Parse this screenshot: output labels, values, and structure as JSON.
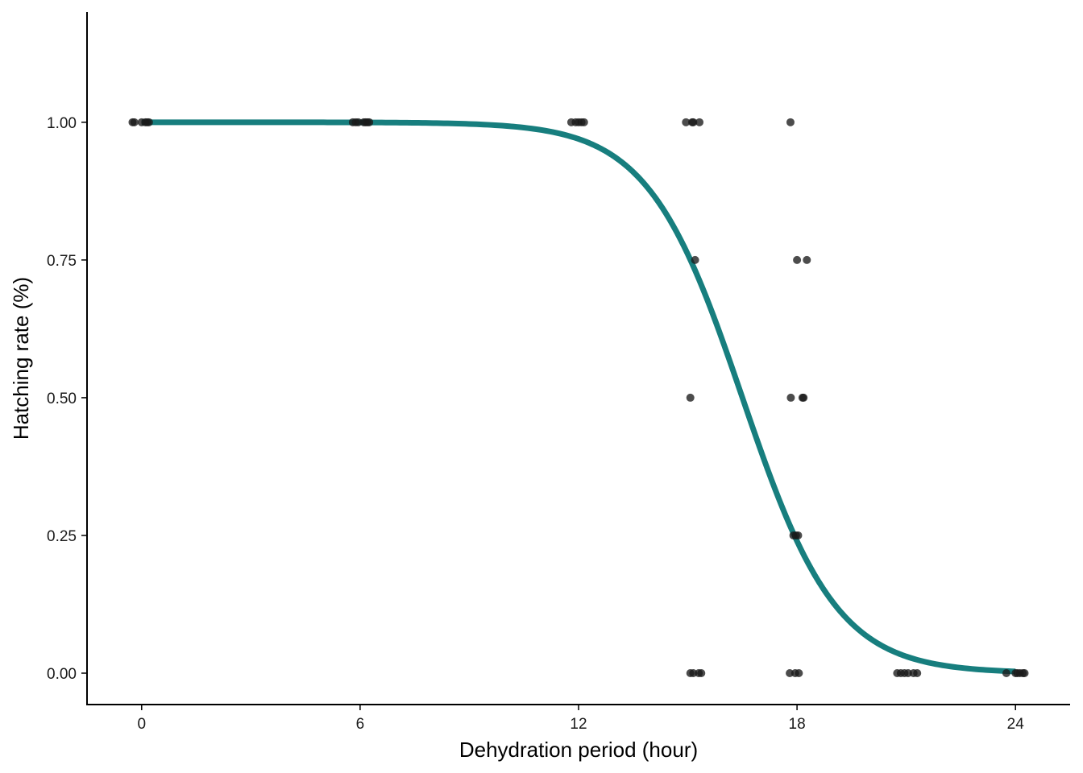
{
  "chart_data": {
    "type": "scatter",
    "title": "",
    "xlabel": "Dehydration period (hour)",
    "ylabel": "Hatching rate (%)",
    "xlim": [
      -1.5,
      25.5
    ],
    "ylim": [
      -0.057,
      1.2
    ],
    "x_ticks": [
      0,
      6,
      12,
      18,
      24
    ],
    "x_tick_labels": [
      "0",
      "6",
      "12",
      "18",
      "24"
    ],
    "y_ticks": [
      0.0,
      0.25,
      0.5,
      0.75,
      1.0
    ],
    "y_tick_labels": [
      "0.00",
      "0.25",
      "0.50",
      "0.75",
      "1.00"
    ],
    "grid": false,
    "legend": "none",
    "colors": {
      "curve": "#177e7e",
      "points": "#1a1a1a",
      "axis": "#000000"
    },
    "points": [
      {
        "x": -0.25,
        "y": 1.0
      },
      {
        "x": -0.2,
        "y": 1.0
      },
      {
        "x": 0.0,
        "y": 1.0
      },
      {
        "x": 0.1,
        "y": 1.0
      },
      {
        "x": 0.15,
        "y": 1.0
      },
      {
        "x": 0.2,
        "y": 1.0
      },
      {
        "x": 5.8,
        "y": 1.0
      },
      {
        "x": 5.88,
        "y": 1.0
      },
      {
        "x": 5.95,
        "y": 1.0
      },
      {
        "x": 6.1,
        "y": 1.0
      },
      {
        "x": 6.15,
        "y": 1.0
      },
      {
        "x": 6.2,
        "y": 1.0
      },
      {
        "x": 6.25,
        "y": 1.0
      },
      {
        "x": 11.8,
        "y": 1.0
      },
      {
        "x": 11.92,
        "y": 1.0
      },
      {
        "x": 12.0,
        "y": 1.0
      },
      {
        "x": 12.08,
        "y": 1.0
      },
      {
        "x": 12.15,
        "y": 1.0
      },
      {
        "x": 14.95,
        "y": 1.0
      },
      {
        "x": 15.12,
        "y": 1.0
      },
      {
        "x": 15.15,
        "y": 1.0
      },
      {
        "x": 15.32,
        "y": 1.0
      },
      {
        "x": 17.82,
        "y": 1.0
      },
      {
        "x": 15.2,
        "y": 0.75
      },
      {
        "x": 18.0,
        "y": 0.75
      },
      {
        "x": 18.27,
        "y": 0.75
      },
      {
        "x": 15.07,
        "y": 0.5
      },
      {
        "x": 17.83,
        "y": 0.5
      },
      {
        "x": 18.15,
        "y": 0.5
      },
      {
        "x": 18.18,
        "y": 0.5
      },
      {
        "x": 17.9,
        "y": 0.25
      },
      {
        "x": 17.97,
        "y": 0.25
      },
      {
        "x": 18.03,
        "y": 0.25
      },
      {
        "x": 15.07,
        "y": 0.0
      },
      {
        "x": 15.15,
        "y": 0.0
      },
      {
        "x": 15.3,
        "y": 0.0
      },
      {
        "x": 15.37,
        "y": 0.0
      },
      {
        "x": 17.8,
        "y": 0.0
      },
      {
        "x": 17.95,
        "y": 0.0
      },
      {
        "x": 18.05,
        "y": 0.0
      },
      {
        "x": 20.75,
        "y": 0.0
      },
      {
        "x": 20.85,
        "y": 0.0
      },
      {
        "x": 20.95,
        "y": 0.0
      },
      {
        "x": 21.05,
        "y": 0.0
      },
      {
        "x": 21.2,
        "y": 0.0
      },
      {
        "x": 21.3,
        "y": 0.0
      },
      {
        "x": 23.75,
        "y": 0.0
      },
      {
        "x": 24.0,
        "y": 0.0
      },
      {
        "x": 24.05,
        "y": 0.0
      },
      {
        "x": 24.12,
        "y": 0.0
      },
      {
        "x": 24.2,
        "y": 0.0
      },
      {
        "x": 24.25,
        "y": 0.0
      }
    ],
    "fitted_curve": {
      "type": "logistic",
      "x_range": [
        0,
        24
      ],
      "midpoint": 16.5,
      "slope": 0.77,
      "values": [
        {
          "x": 0,
          "y": 1.0
        },
        {
          "x": 6,
          "y": 1.0
        },
        {
          "x": 9,
          "y": 0.997
        },
        {
          "x": 12,
          "y": 0.97
        },
        {
          "x": 14,
          "y": 0.87
        },
        {
          "x": 16,
          "y": 0.6
        },
        {
          "x": 18,
          "y": 0.24
        },
        {
          "x": 20,
          "y": 0.065
        },
        {
          "x": 22,
          "y": 0.014
        },
        {
          "x": 24,
          "y": 0.003
        }
      ]
    }
  }
}
